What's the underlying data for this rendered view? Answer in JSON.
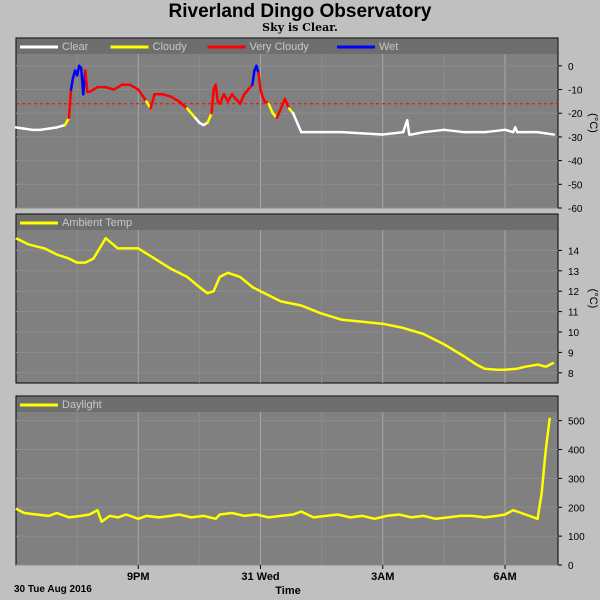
{
  "title": "Riverland Dingo Observatory",
  "subtitle": "Sky is Clear.",
  "footer": {
    "date_label": "30 Tue Aug 2016",
    "xlabel": "Time"
  },
  "colors": {
    "background": "#c0c0c0",
    "plot_bg": "#808080",
    "clear": "#ffffff",
    "cloudy": "#ffff00",
    "very_cloudy": "#ff0000",
    "wet": "#0000ff",
    "threshold": "#ff0000"
  },
  "chart_data": [
    {
      "type": "line",
      "name": "sky",
      "unit_label": "(°C)",
      "legend": [
        {
          "label": "Clear",
          "color": "#ffffff"
        },
        {
          "label": "Cloudy",
          "color": "#ffff00"
        },
        {
          "label": "Very Cloudy",
          "color": "#ff0000"
        },
        {
          "label": "Wet",
          "color": "#0000ff"
        }
      ],
      "ylim": [
        -60,
        5
      ],
      "yticks": [
        0,
        -10,
        -20,
        -30,
        -40,
        -50,
        -60
      ],
      "threshold": -16,
      "grid": true,
      "x_hours": [
        0,
        0.2,
        0.4,
        0.6,
        0.8,
        1.0,
        1.2,
        1.3,
        1.35,
        1.4,
        1.45,
        1.5,
        1.55,
        1.6,
        1.65,
        1.7,
        1.75,
        1.8,
        1.9,
        2.0,
        2.2,
        2.4,
        2.6,
        2.8,
        3.0,
        3.2,
        3.3,
        3.4,
        3.6,
        3.8,
        4.0,
        4.2,
        4.4,
        4.5,
        4.6,
        4.7,
        4.8,
        4.85,
        4.9,
        4.95,
        5.0,
        5.1,
        5.2,
        5.3,
        5.4,
        5.5,
        5.6,
        5.7,
        5.8,
        5.85,
        5.9,
        5.95,
        6.0,
        6.05,
        6.1,
        6.2,
        6.3,
        6.4,
        6.5,
        6.6,
        6.7,
        6.8,
        7.0,
        7.5,
        8.0,
        8.5,
        9.0,
        9.5,
        9.6,
        9.65,
        9.7,
        10.0,
        10.5,
        11.0,
        11.5,
        12.0,
        12.2,
        12.25,
        12.3,
        12.5,
        12.8,
        13.0,
        13.2
      ],
      "y_sky": [
        -26,
        -26.5,
        -27,
        -27,
        -26.5,
        -26,
        -25,
        -22,
        -10,
        -5,
        -2,
        -4,
        0,
        -1,
        -12,
        -2,
        -11,
        -11,
        -10,
        -9,
        -9,
        -10,
        -8,
        -8,
        -10,
        -15,
        -18,
        -12,
        -12,
        -13,
        -15,
        -18,
        -22,
        -24,
        -25,
        -24,
        -20,
        -10,
        -8,
        -15,
        -16,
        -12,
        -15,
        -12,
        -14,
        -16,
        -12,
        -10,
        -8,
        -2,
        0,
        -3,
        -10,
        -13,
        -15,
        -16,
        -20,
        -22,
        -18,
        -14,
        -18,
        -20,
        -28,
        -28,
        -28,
        -28.5,
        -29,
        -28,
        -23,
        -29,
        -29,
        -28,
        -27,
        -28,
        -28,
        -27,
        -28,
        -26,
        -28,
        -28,
        -28,
        -28.5,
        -29
      ],
      "y_cond": [
        "clear",
        "clear",
        "clear",
        "clear",
        "clear",
        "clear",
        "clear",
        "cloudy",
        "very_cloudy",
        "wet",
        "wet",
        "wet",
        "wet",
        "wet",
        "wet",
        "wet",
        "very_cloudy",
        "very_cloudy",
        "very_cloudy",
        "very_cloudy",
        "very_cloudy",
        "very_cloudy",
        "very_cloudy",
        "very_cloudy",
        "very_cloudy",
        "very_cloudy",
        "cloudy",
        "very_cloudy",
        "very_cloudy",
        "very_cloudy",
        "very_cloudy",
        "very_cloudy",
        "cloudy",
        "clear",
        "clear",
        "clear",
        "cloudy",
        "very_cloudy",
        "very_cloudy",
        "very_cloudy",
        "very_cloudy",
        "very_cloudy",
        "very_cloudy",
        "very_cloudy",
        "very_cloudy",
        "very_cloudy",
        "very_cloudy",
        "very_cloudy",
        "very_cloudy",
        "wet",
        "wet",
        "wet",
        "very_cloudy",
        "very_cloudy",
        "very_cloudy",
        "very_cloudy",
        "cloudy",
        "cloudy",
        "very_cloudy",
        "very_cloudy",
        "very_cloudy",
        "cloudy",
        "clear",
        "clear",
        "clear",
        "clear",
        "clear",
        "clear",
        "clear",
        "clear",
        "clear",
        "clear",
        "clear",
        "clear",
        "clear",
        "clear",
        "clear",
        "clear",
        "clear",
        "clear",
        "clear",
        "clear",
        "clear"
      ]
    },
    {
      "type": "line",
      "name": "ambient",
      "unit_label": "(°C)",
      "legend": [
        {
          "label": "Ambient Temp",
          "color": "#ffff00"
        }
      ],
      "ylim": [
        7.5,
        15
      ],
      "yticks": [
        8,
        9,
        10,
        11,
        12,
        13,
        14
      ],
      "grid": true,
      "x": [
        0,
        0.3,
        0.7,
        1.0,
        1.3,
        1.5,
        1.7,
        1.9,
        2.2,
        2.5,
        3.0,
        3.4,
        3.8,
        4.2,
        4.5,
        4.7,
        4.85,
        5.0,
        5.2,
        5.5,
        5.8,
        6.0,
        6.5,
        7.0,
        7.5,
        8.0,
        8.5,
        9.0,
        9.5,
        10.0,
        10.5,
        11.0,
        11.3,
        11.5,
        11.8,
        12.0,
        12.3,
        12.5,
        12.8,
        13.0,
        13.2
      ],
      "y": [
        14.6,
        14.3,
        14.1,
        13.8,
        13.6,
        13.4,
        13.4,
        13.6,
        14.6,
        14.1,
        14.1,
        13.6,
        13.1,
        12.7,
        12.2,
        11.9,
        12.0,
        12.7,
        12.9,
        12.7,
        12.2,
        12.0,
        11.5,
        11.3,
        10.9,
        10.6,
        10.5,
        10.4,
        10.2,
        9.9,
        9.4,
        8.8,
        8.4,
        8.2,
        8.15,
        8.15,
        8.2,
        8.3,
        8.4,
        8.3,
        8.5
      ]
    },
    {
      "type": "line",
      "name": "daylight",
      "legend": [
        {
          "label": "Daylight",
          "color": "#ffff00"
        }
      ],
      "ylim": [
        0,
        530
      ],
      "yticks": [
        0,
        100,
        200,
        300,
        400,
        500
      ],
      "grid": true,
      "x": [
        0,
        0.2,
        0.5,
        0.8,
        1.0,
        1.3,
        1.6,
        1.8,
        2.0,
        2.1,
        2.3,
        2.5,
        2.7,
        3.0,
        3.2,
        3.5,
        3.8,
        4.0,
        4.3,
        4.6,
        4.9,
        5.0,
        5.3,
        5.6,
        5.9,
        6.2,
        6.5,
        6.8,
        7.0,
        7.3,
        7.6,
        7.9,
        8.2,
        8.5,
        8.8,
        9.1,
        9.4,
        9.7,
        10.0,
        10.3,
        10.6,
        10.9,
        11.2,
        11.5,
        11.8,
        12.0,
        12.2,
        12.4,
        12.6,
        12.8,
        12.9,
        13.0,
        13.1
      ],
      "y": [
        195,
        180,
        175,
        170,
        180,
        165,
        170,
        175,
        190,
        150,
        170,
        165,
        175,
        160,
        170,
        165,
        170,
        175,
        165,
        170,
        160,
        175,
        180,
        170,
        175,
        165,
        170,
        175,
        185,
        165,
        170,
        175,
        165,
        170,
        160,
        170,
        175,
        165,
        170,
        160,
        165,
        170,
        170,
        165,
        170,
        175,
        190,
        180,
        170,
        160,
        250,
        400,
        510
      ]
    }
  ],
  "x_axis": {
    "ticks": [
      {
        "hour": 3,
        "label": "9PM"
      },
      {
        "hour": 6,
        "label": "31 Wed"
      },
      {
        "hour": 9,
        "label": "3AM"
      },
      {
        "hour": 12,
        "label": "6AM"
      }
    ],
    "range_hours": [
      0,
      13.3
    ]
  }
}
